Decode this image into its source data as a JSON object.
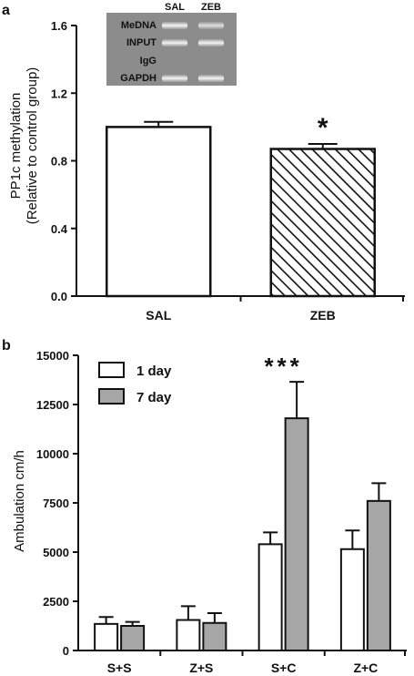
{
  "chart_data": [
    {
      "panel_label": "a",
      "type": "bar",
      "categories": [
        "SAL",
        "ZEB"
      ],
      "values": [
        1.0,
        0.87
      ],
      "errors": [
        0.03,
        0.03
      ],
      "patterns": [
        "solid",
        "hatched"
      ],
      "significance": [
        "",
        "*"
      ],
      "ylabel": "PP1c methylation",
      "ylabel2": "(Relative to control group)",
      "ylim": [
        0,
        1.6
      ],
      "yticks": [
        "0.0",
        "0.4",
        "0.8",
        "1.2",
        "1.6"
      ],
      "grid": false,
      "inset": {
        "columns": [
          "SAL",
          "ZEB"
        ],
        "rows": [
          "MeDNA",
          "INPUT",
          "IgG",
          "GAPDH"
        ]
      }
    },
    {
      "panel_label": "b",
      "type": "bar",
      "categories": [
        "S+S",
        "Z+S",
        "S+C",
        "Z+C"
      ],
      "series": [
        {
          "name": "1 day",
          "color": "#ffffff",
          "values": [
            1350,
            1550,
            5400,
            5150
          ],
          "errors": [
            350,
            700,
            600,
            950
          ]
        },
        {
          "name": "7 day",
          "color": "#a6a6a6",
          "values": [
            1250,
            1400,
            11800,
            7600
          ],
          "errors": [
            200,
            500,
            1850,
            900
          ]
        }
      ],
      "significance": [
        "",
        "",
        "***",
        ""
      ],
      "ylabel": "Ambulation cm/h",
      "ylim": [
        0,
        15000
      ],
      "yticks": [
        "0",
        "2500",
        "5000",
        "7500",
        "10000",
        "12500",
        "15000"
      ],
      "legend_position": "top-left",
      "grid": false
    }
  ]
}
